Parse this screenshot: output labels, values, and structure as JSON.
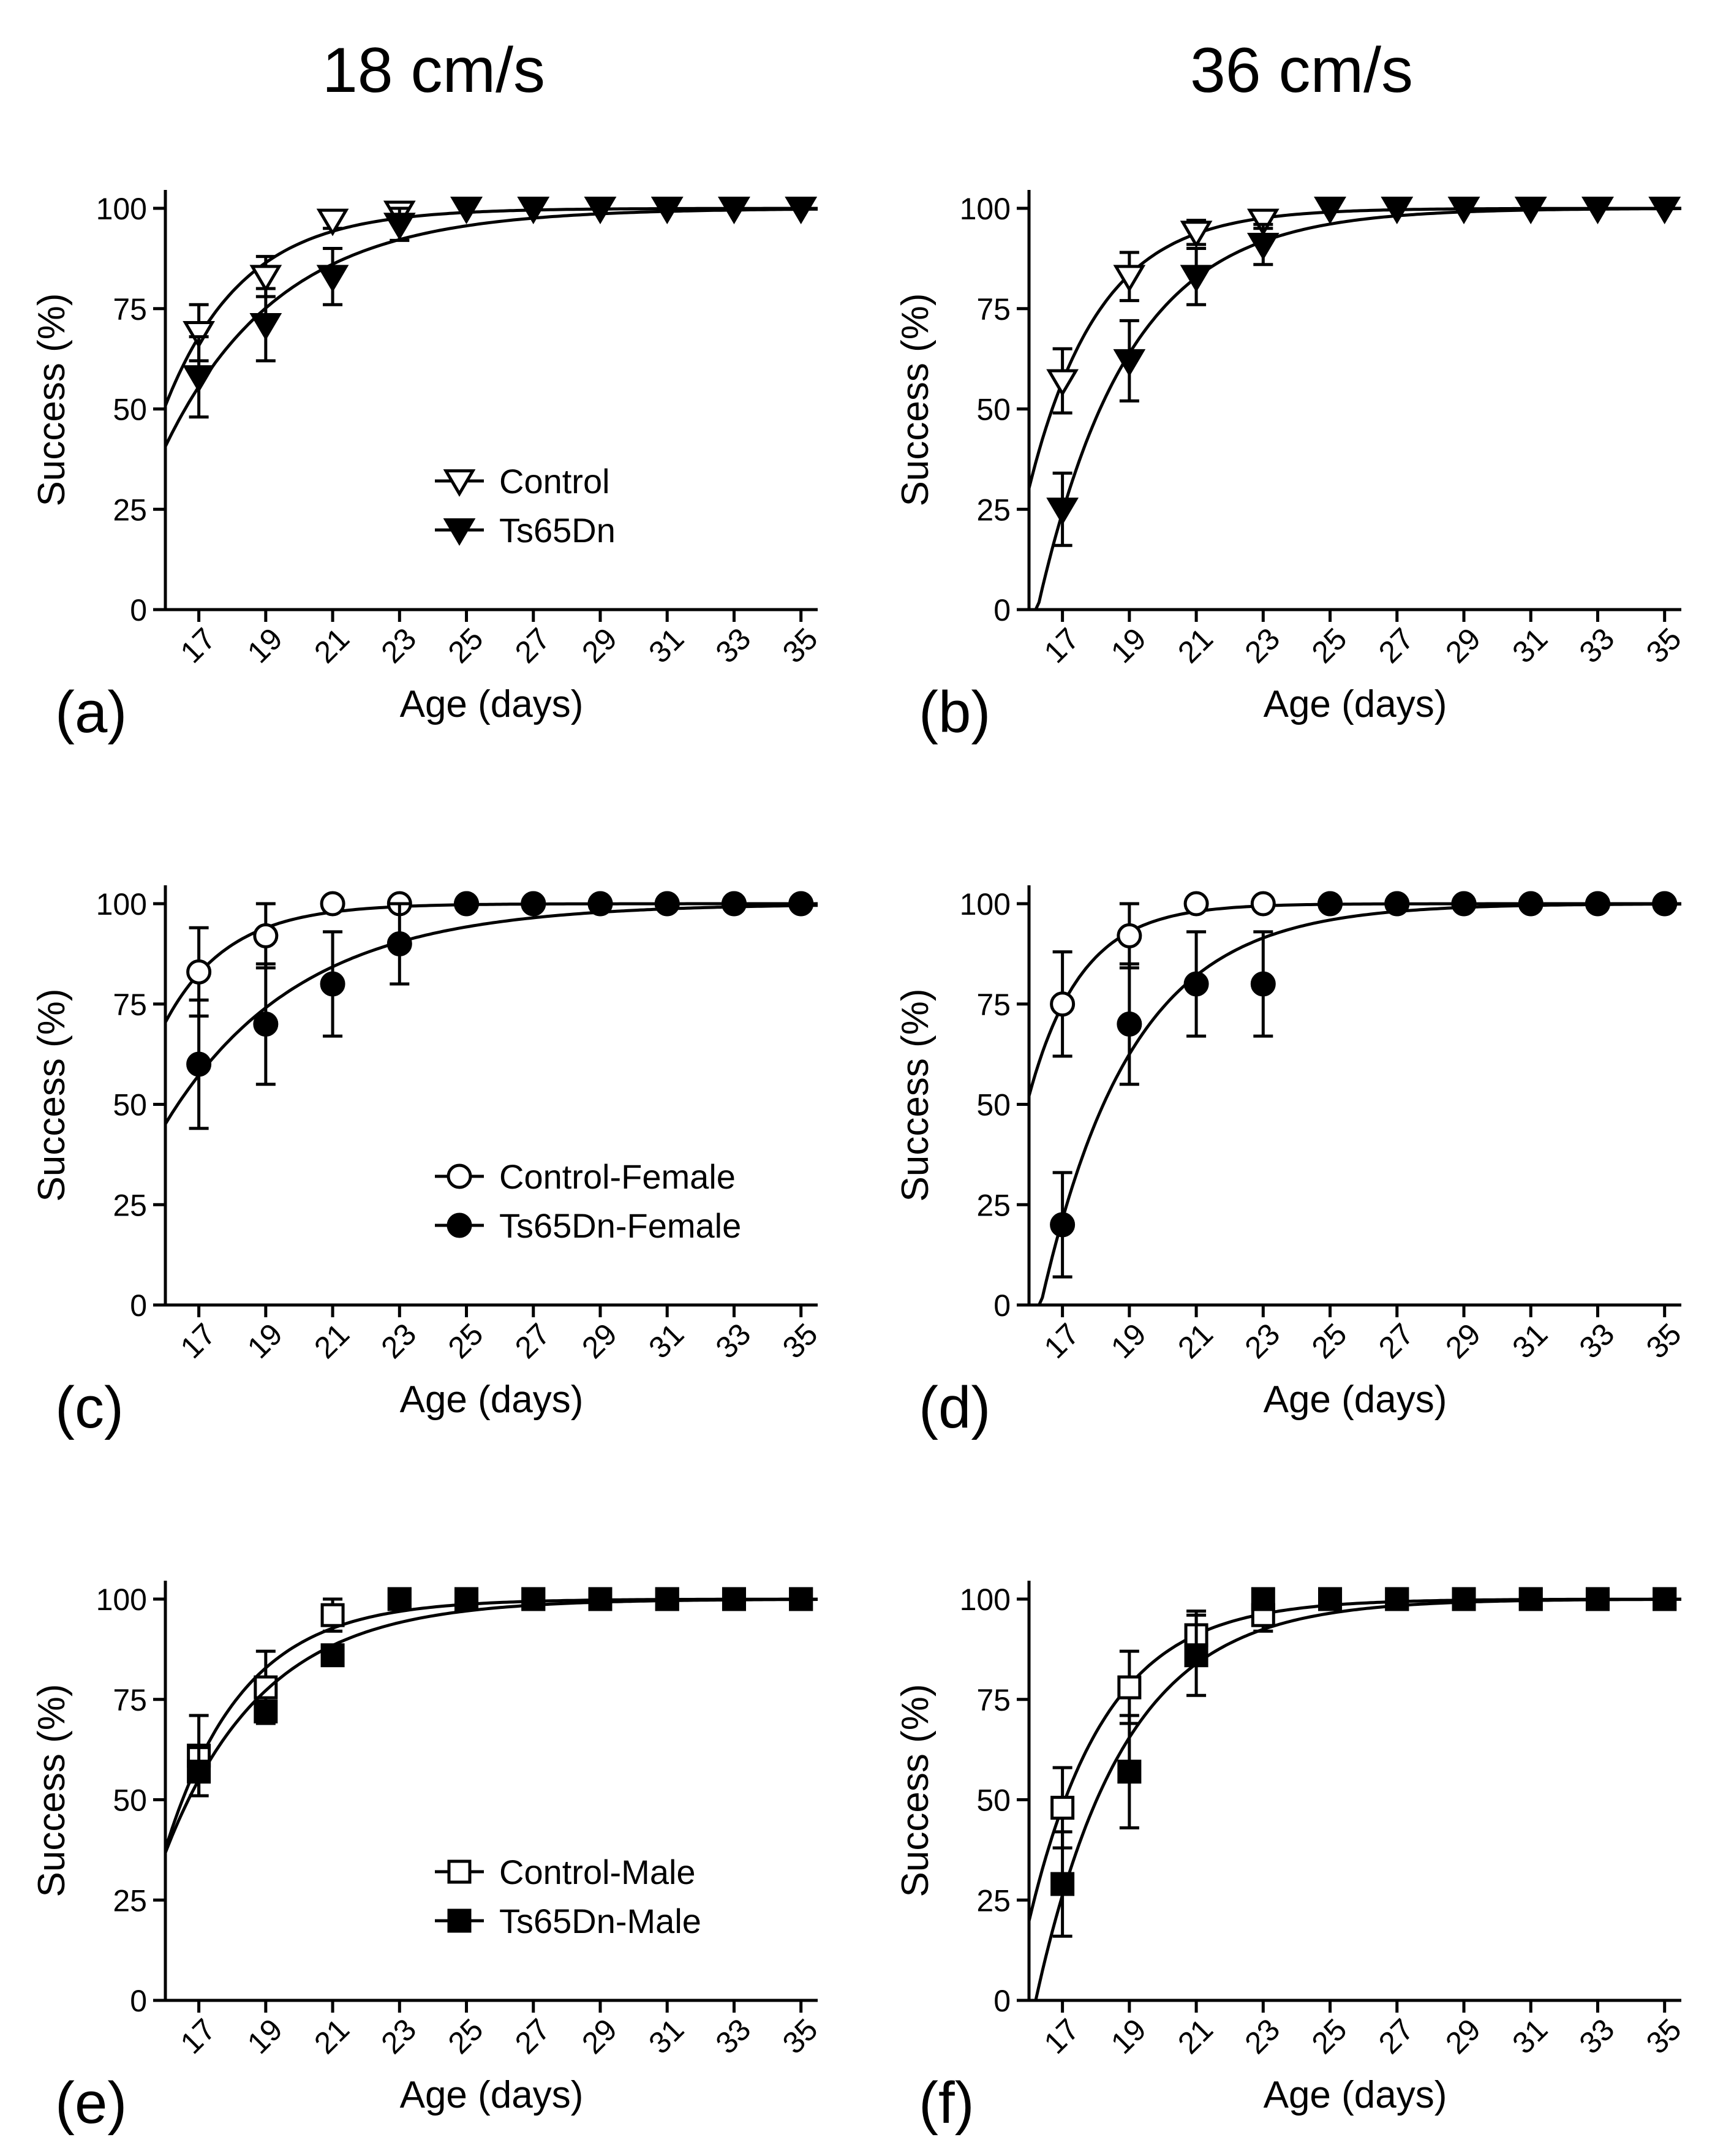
{
  "column_titles": [
    "18 cm/s",
    "36 cm/s"
  ],
  "chart_data": [
    {
      "panel": "(a)",
      "type": "line",
      "xlabel": "Age (days)",
      "ylabel": "Success (%)",
      "x": [
        17,
        19,
        21,
        23,
        25,
        27,
        29,
        31,
        33,
        35
      ],
      "ylim": [
        0,
        100
      ],
      "yticks": [
        0,
        25,
        50,
        75,
        100
      ],
      "marker": "triangle-down",
      "legend_position": "center-bottom",
      "series": [
        {
          "name": "Control",
          "filled": false,
          "values": [
            69,
            83,
            97,
            99,
            100,
            100,
            100,
            100,
            100,
            100
          ],
          "err": [
            7,
            5,
            2,
            2,
            0,
            0,
            0,
            0,
            0,
            0
          ]
        },
        {
          "name": "Ts65Dn",
          "filled": true,
          "values": [
            58,
            71,
            83,
            96,
            100,
            100,
            100,
            100,
            100,
            100
          ],
          "err": [
            10,
            9,
            7,
            4,
            0,
            0,
            0,
            0,
            0,
            0
          ]
        }
      ]
    },
    {
      "panel": "(b)",
      "type": "line",
      "xlabel": "Age (days)",
      "ylabel": "Success (%)",
      "x": [
        17,
        19,
        21,
        23,
        25,
        27,
        29,
        31,
        33,
        35
      ],
      "ylim": [
        0,
        100
      ],
      "yticks": [
        0,
        25,
        50,
        75,
        100
      ],
      "marker": "triangle-down",
      "legend_position": "none",
      "series": [
        {
          "name": "Control",
          "filled": false,
          "values": [
            57,
            83,
            94,
            97,
            100,
            100,
            100,
            100,
            100,
            100
          ],
          "err": [
            8,
            6,
            3,
            2,
            0,
            0,
            0,
            0,
            0,
            0
          ]
        },
        {
          "name": "Ts65Dn",
          "filled": true,
          "values": [
            25,
            62,
            83,
            91,
            100,
            100,
            100,
            100,
            100,
            100
          ],
          "err": [
            9,
            10,
            7,
            5,
            0,
            0,
            0,
            0,
            0,
            0
          ]
        }
      ]
    },
    {
      "panel": "(c)",
      "type": "line",
      "xlabel": "Age (days)",
      "ylabel": "Success (%)",
      "x": [
        17,
        19,
        21,
        23,
        25,
        27,
        29,
        31,
        33,
        35
      ],
      "ylim": [
        0,
        100
      ],
      "yticks": [
        0,
        25,
        50,
        75,
        100
      ],
      "marker": "circle",
      "legend_position": "center-bottom",
      "series": [
        {
          "name": "Control-Female",
          "filled": false,
          "values": [
            83,
            92,
            100,
            100,
            100,
            100,
            100,
            100,
            100,
            100
          ],
          "err": [
            11,
            8,
            0,
            0,
            0,
            0,
            0,
            0,
            0,
            0
          ]
        },
        {
          "name": "Ts65Dn-Female",
          "filled": true,
          "values": [
            60,
            70,
            80,
            90,
            100,
            100,
            100,
            100,
            100,
            100
          ],
          "err": [
            16,
            15,
            13,
            10,
            0,
            0,
            0,
            0,
            0,
            0
          ]
        }
      ]
    },
    {
      "panel": "(d)",
      "type": "line",
      "xlabel": "Age (days)",
      "ylabel": "Success (%)",
      "x": [
        17,
        19,
        21,
        23,
        25,
        27,
        29,
        31,
        33,
        35
      ],
      "ylim": [
        0,
        100
      ],
      "yticks": [
        0,
        25,
        50,
        75,
        100
      ],
      "marker": "circle",
      "legend_position": "none",
      "series": [
        {
          "name": "Control-Female",
          "filled": false,
          "values": [
            75,
            92,
            100,
            100,
            100,
            100,
            100,
            100,
            100,
            100
          ],
          "err": [
            13,
            8,
            0,
            0,
            0,
            0,
            0,
            0,
            0,
            0
          ]
        },
        {
          "name": "Ts65Dn-Female",
          "filled": true,
          "values": [
            20,
            70,
            80,
            80,
            100,
            100,
            100,
            100,
            100,
            100
          ],
          "err": [
            13,
            15,
            13,
            13,
            0,
            0,
            0,
            0,
            0,
            0
          ]
        }
      ]
    },
    {
      "panel": "(e)",
      "type": "line",
      "xlabel": "Age (days)",
      "ylabel": "Success (%)",
      "x": [
        17,
        19,
        21,
        23,
        25,
        27,
        29,
        31,
        33,
        35
      ],
      "ylim": [
        0,
        100
      ],
      "yticks": [
        0,
        25,
        50,
        75,
        100
      ],
      "marker": "square",
      "legend_position": "center-bottom",
      "series": [
        {
          "name": "Control-Male",
          "filled": false,
          "values": [
            61,
            78,
            96,
            100,
            100,
            100,
            100,
            100,
            100,
            100
          ],
          "err": [
            10,
            9,
            4,
            0,
            0,
            0,
            0,
            0,
            0,
            0
          ]
        },
        {
          "name": "Ts65Dn-Male",
          "filled": true,
          "values": [
            57,
            72,
            86,
            100,
            100,
            100,
            100,
            100,
            100,
            100
          ],
          "err": [
            6,
            0,
            0,
            0,
            0,
            0,
            0,
            0,
            0,
            0
          ]
        }
      ]
    },
    {
      "panel": "(f)",
      "type": "line",
      "xlabel": "Age (days)",
      "ylabel": "Success (%)",
      "x": [
        17,
        19,
        21,
        23,
        25,
        27,
        29,
        31,
        33,
        35
      ],
      "ylim": [
        0,
        100
      ],
      "yticks": [
        0,
        25,
        50,
        75,
        100
      ],
      "marker": "square",
      "legend_position": "none",
      "series": [
        {
          "name": "Control-Male",
          "filled": false,
          "values": [
            48,
            78,
            91,
            96,
            100,
            100,
            100,
            100,
            100,
            100
          ],
          "err": [
            10,
            9,
            6,
            4,
            0,
            0,
            0,
            0,
            0,
            0
          ]
        },
        {
          "name": "Ts65Dn-Male",
          "filled": true,
          "values": [
            29,
            57,
            86,
            100,
            100,
            100,
            100,
            100,
            100,
            100
          ],
          "err": [
            13,
            14,
            10,
            0,
            0,
            0,
            0,
            0,
            0,
            0
          ]
        }
      ]
    }
  ]
}
